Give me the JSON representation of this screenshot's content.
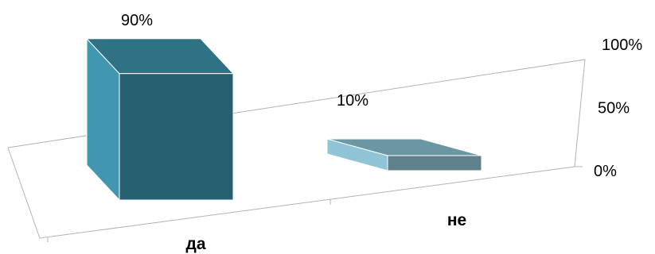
{
  "chart_data": {
    "type": "bar",
    "style": "3d-column",
    "categories": [
      "да",
      "не"
    ],
    "values": [
      90,
      10
    ],
    "data_labels": [
      "90%",
      "10%"
    ],
    "title": "",
    "xlabel": "",
    "ylabel": "",
    "ylim": [
      0,
      100
    ],
    "y_ticks": [
      0,
      50,
      100
    ],
    "y_tick_labels": [
      "0%",
      "50%",
      "100%"
    ],
    "grid": false,
    "legend": "none",
    "y_axis_side": "right",
    "colors": [
      {
        "front": "#27606F",
        "side": "#4197AF",
        "top": "#2E7283"
      },
      {
        "front": "#60808B",
        "side": "#8EC4D6",
        "top": "#6B97A5"
      }
    ]
  }
}
